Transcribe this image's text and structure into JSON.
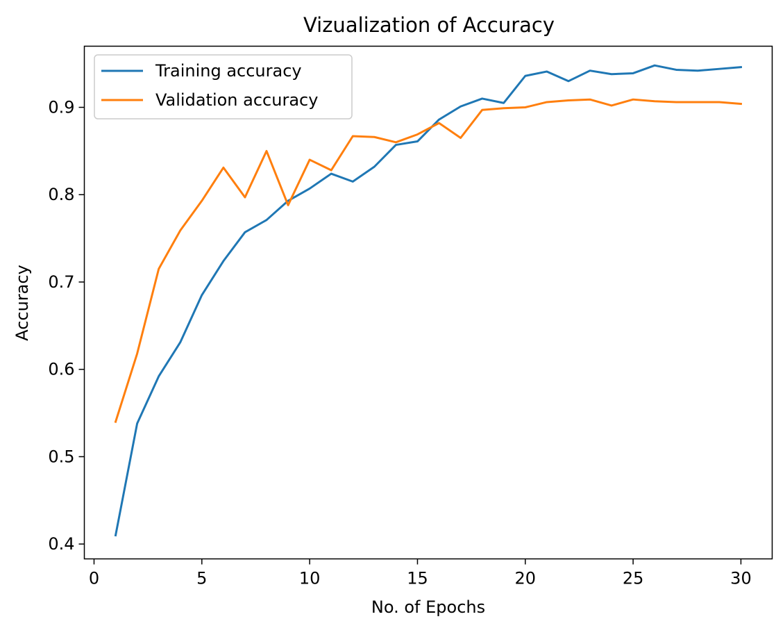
{
  "chart_data": {
    "type": "line",
    "title": "Vizualization of Accuracy",
    "xlabel": "No. of Epochs",
    "ylabel": "Accuracy",
    "xlim": [
      -0.45,
      31.45
    ],
    "ylim": [
      0.383,
      0.97
    ],
    "x_ticks": [
      0,
      5,
      10,
      15,
      20,
      25,
      30
    ],
    "y_ticks": [
      0.4,
      0.5,
      0.6,
      0.7,
      0.8,
      0.9
    ],
    "y_tick_labels": [
      "0.4",
      "0.5",
      "0.6",
      "0.7",
      "0.8",
      "0.9"
    ],
    "grid": false,
    "legend_position": "top-left",
    "x": [
      1,
      2,
      3,
      4,
      5,
      6,
      7,
      8,
      9,
      10,
      11,
      12,
      13,
      14,
      15,
      16,
      17,
      18,
      19,
      20,
      21,
      22,
      23,
      24,
      25,
      26,
      27,
      28,
      29,
      30
    ],
    "series": [
      {
        "name": "Training accuracy",
        "color": "#1f77b4",
        "values": [
          0.41,
          0.538,
          0.592,
          0.631,
          0.685,
          0.724,
          0.757,
          0.771,
          0.793,
          0.807,
          0.824,
          0.815,
          0.832,
          0.857,
          0.861,
          0.886,
          0.901,
          0.91,
          0.905,
          0.936,
          0.941,
          0.93,
          0.942,
          0.938,
          0.939,
          0.948,
          0.943,
          0.942,
          0.944,
          0.946
        ]
      },
      {
        "name": "Validation accuracy",
        "color": "#ff7f0e",
        "values": [
          0.54,
          0.618,
          0.715,
          0.759,
          0.793,
          0.831,
          0.797,
          0.85,
          0.788,
          0.84,
          0.828,
          0.867,
          0.866,
          0.86,
          0.869,
          0.882,
          0.865,
          0.897,
          0.899,
          0.9,
          0.906,
          0.908,
          0.909,
          0.902,
          0.909,
          0.907,
          0.906,
          0.906,
          0.906,
          0.904
        ]
      }
    ]
  }
}
